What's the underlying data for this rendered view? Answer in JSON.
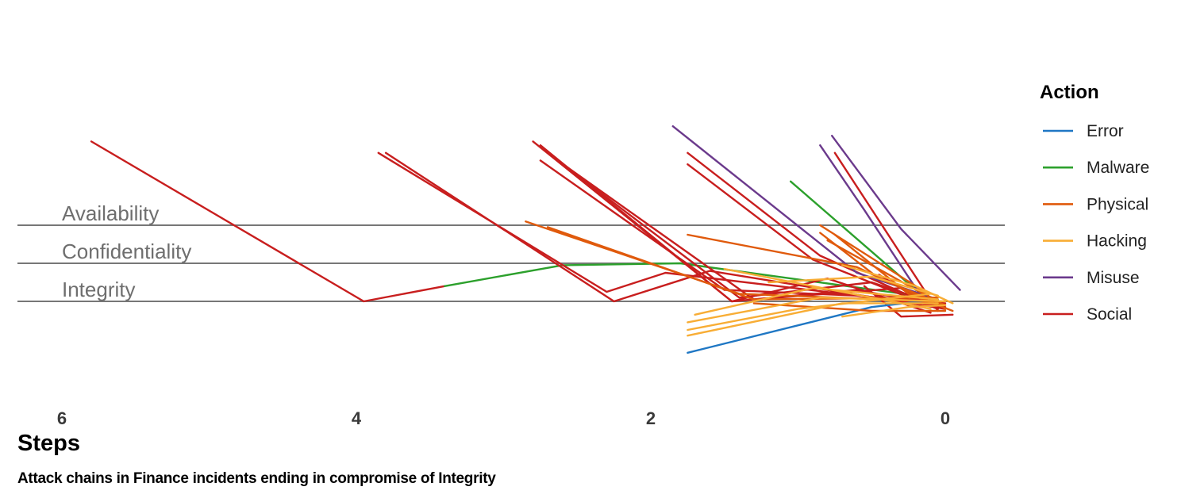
{
  "chart_data": {
    "type": "line",
    "xlabel": "Steps",
    "subtitle": "Attack chains in Finance incidents ending in compromise of Integrity",
    "x_ticks": [
      6,
      4,
      2,
      0
    ],
    "xlim": [
      6.3,
      -0.4
    ],
    "categories": [
      "Availability",
      "Confidentiality",
      "Integrity"
    ],
    "legend": {
      "title": "Action",
      "position": "right",
      "entries": [
        {
          "name": "Error",
          "color": "#1f77c4"
        },
        {
          "name": "Malware",
          "color": "#2ca02c"
        },
        {
          "name": "Physical",
          "color": "#e05a0c"
        },
        {
          "name": "Hacking",
          "color": "#f8ad35"
        },
        {
          "name": "Misuse",
          "color": "#6b3a8c"
        },
        {
          "name": "Social",
          "color": "#c81e1e"
        }
      ]
    },
    "chains": [
      {
        "segments": [
          {
            "action": "Social",
            "points": [
              [
                5.8,
                4.2
              ],
              [
                3.95,
                0.0
              ],
              [
                3.4,
                0.4
              ]
            ]
          },
          {
            "action": "Malware",
            "points": [
              [
                3.4,
                0.4
              ],
              [
                2.6,
                0.95
              ],
              [
                1.8,
                1.0
              ],
              [
                0.1,
                0.1
              ]
            ]
          }
        ]
      },
      {
        "segments": [
          {
            "action": "Social",
            "points": [
              [
                3.85,
                3.9
              ],
              [
                2.3,
                0.25
              ],
              [
                1.9,
                0.75
              ],
              [
                0.05,
                -0.1
              ]
            ]
          }
        ]
      },
      {
        "segments": [
          {
            "action": "Social",
            "points": [
              [
                3.8,
                3.9
              ],
              [
                2.25,
                0.0
              ],
              [
                1.6,
                0.8
              ],
              [
                0.0,
                -0.2
              ]
            ]
          }
        ]
      },
      {
        "segments": [
          {
            "action": "Social",
            "points": [
              [
                2.8,
                4.2
              ],
              [
                1.45,
                0.0
              ],
              [
                0.6,
                0.3
              ],
              [
                0.05,
                -0.1
              ]
            ]
          }
        ]
      },
      {
        "segments": [
          {
            "action": "Social",
            "points": [
              [
                2.75,
                4.1
              ],
              [
                1.45,
                0.0
              ],
              [
                0.8,
                0.6
              ],
              [
                0.1,
                -0.3
              ]
            ]
          }
        ]
      },
      {
        "segments": [
          {
            "action": "Social",
            "points": [
              [
                2.7,
                3.9
              ],
              [
                1.4,
                0.1
              ],
              [
                0.5,
                0.5
              ],
              [
                0.0,
                -0.15
              ]
            ]
          }
        ]
      },
      {
        "segments": [
          {
            "action": "Social",
            "points": [
              [
                2.65,
                3.75
              ],
              [
                1.3,
                0.05
              ],
              [
                0.3,
                0.35
              ],
              [
                0.05,
                -0.2
              ]
            ]
          }
        ]
      },
      {
        "segments": [
          {
            "action": "Social",
            "points": [
              [
                2.75,
                3.7
              ],
              [
                1.5,
                0.3
              ],
              [
                0.6,
                0.15
              ],
              [
                0.0,
                -0.05
              ]
            ]
          }
        ]
      },
      {
        "segments": [
          {
            "action": "Social",
            "points": [
              [
                1.75,
                3.9
              ],
              [
                0.85,
                1.2
              ],
              [
                0.1,
                -0.1
              ]
            ]
          }
        ]
      },
      {
        "segments": [
          {
            "action": "Social",
            "points": [
              [
                1.75,
                3.6
              ],
              [
                0.9,
                1.1
              ],
              [
                0.05,
                -0.2
              ]
            ]
          }
        ]
      },
      {
        "segments": [
          {
            "action": "Social",
            "points": [
              [
                0.75,
                3.9
              ],
              [
                0.05,
                -0.25
              ]
            ]
          }
        ]
      },
      {
        "segments": [
          {
            "action": "Social",
            "points": [
              [
                0.45,
                0.7
              ],
              [
                0.2,
                0.1
              ],
              [
                0.0,
                -0.2
              ]
            ]
          }
        ]
      },
      {
        "segments": [
          {
            "action": "Social",
            "points": [
              [
                0.55,
                0.4
              ],
              [
                0.3,
                -0.4
              ],
              [
                -0.05,
                -0.35
              ]
            ]
          }
        ]
      },
      {
        "segments": [
          {
            "action": "Misuse",
            "points": [
              [
                1.85,
                4.6
              ],
              [
                0.6,
                0.75
              ],
              [
                0.05,
                0.05
              ]
            ]
          }
        ]
      },
      {
        "segments": [
          {
            "action": "Misuse",
            "points": [
              [
                0.85,
                4.1
              ],
              [
                0.55,
                2.4
              ],
              [
                0.15,
                0.05
              ]
            ]
          }
        ]
      },
      {
        "segments": [
          {
            "action": "Misuse",
            "points": [
              [
                0.77,
                4.35
              ],
              [
                0.3,
                1.9
              ],
              [
                -0.1,
                0.3
              ]
            ]
          }
        ]
      },
      {
        "segments": [
          {
            "action": "Malware",
            "points": [
              [
                1.05,
                3.15
              ],
              [
                0.2,
                0.3
              ]
            ]
          }
        ]
      },
      {
        "segments": [
          {
            "action": "Error",
            "points": [
              [
                1.75,
                -1.35
              ],
              [
                0.5,
                -0.15
              ],
              [
                0.05,
                0.05
              ]
            ]
          }
        ]
      },
      {
        "segments": [
          {
            "action": "Physical",
            "points": [
              [
                2.85,
                2.1
              ],
              [
                1.4,
                0.2
              ],
              [
                0.1,
                0.0
              ]
            ]
          }
        ]
      },
      {
        "segments": [
          {
            "action": "Physical",
            "points": [
              [
                2.7,
                1.95
              ],
              [
                1.3,
                0.05
              ],
              [
                0.05,
                0.1
              ]
            ]
          }
        ]
      },
      {
        "segments": [
          {
            "action": "Physical",
            "points": [
              [
                1.75,
                1.75
              ],
              [
                0.6,
                0.9
              ],
              [
                0.05,
                -0.1
              ]
            ]
          }
        ]
      },
      {
        "segments": [
          {
            "action": "Physical",
            "points": [
              [
                0.85,
                2.0
              ],
              [
                0.2,
                0.4
              ],
              [
                0.0,
                -0.2
              ]
            ]
          }
        ]
      },
      {
        "segments": [
          {
            "action": "Physical",
            "points": [
              [
                0.85,
                1.8
              ],
              [
                0.45,
                0.6
              ],
              [
                0.0,
                -0.1
              ]
            ]
          }
        ]
      },
      {
        "segments": [
          {
            "action": "Physical",
            "points": [
              [
                0.75,
                1.75
              ],
              [
                0.25,
                0.2
              ],
              [
                -0.05,
                -0.25
              ]
            ]
          }
        ]
      },
      {
        "segments": [
          {
            "action": "Physical",
            "points": [
              [
                0.8,
                1.6
              ],
              [
                0.15,
                0.2
              ]
            ]
          }
        ]
      },
      {
        "segments": [
          {
            "action": "Physical",
            "points": [
              [
                1.3,
                -0.05
              ],
              [
                0.5,
                -0.25
              ],
              [
                0.0,
                -0.25
              ]
            ]
          }
        ]
      },
      {
        "segments": [
          {
            "action": "Hacking",
            "points": [
              [
                1.7,
                -0.35
              ],
              [
                0.9,
                0.35
              ],
              [
                0.05,
                0.05
              ]
            ]
          }
        ]
      },
      {
        "segments": [
          {
            "action": "Hacking",
            "points": [
              [
                1.75,
                -0.55
              ],
              [
                0.85,
                0.1
              ],
              [
                0.0,
                0.0
              ]
            ]
          }
        ]
      },
      {
        "segments": [
          {
            "action": "Hacking",
            "points": [
              [
                1.75,
                -0.9
              ],
              [
                0.7,
                -0.05
              ],
              [
                0.05,
                -0.05
              ]
            ]
          }
        ]
      },
      {
        "segments": [
          {
            "action": "Hacking",
            "points": [
              [
                1.75,
                -0.75
              ],
              [
                1.0,
                -0.2
              ],
              [
                0.1,
                0.2
              ]
            ]
          }
        ]
      },
      {
        "segments": [
          {
            "action": "Hacking",
            "points": [
              [
                1.5,
                0.85
              ],
              [
                0.9,
                0.4
              ],
              [
                0.1,
                -0.2
              ]
            ]
          }
        ]
      },
      {
        "segments": [
          {
            "action": "Hacking",
            "points": [
              [
                0.7,
                0.95
              ],
              [
                0.2,
                0.4
              ],
              [
                -0.05,
                -0.05
              ]
            ]
          }
        ]
      },
      {
        "segments": [
          {
            "action": "Hacking",
            "points": [
              [
                0.7,
                -0.4
              ],
              [
                0.25,
                -0.15
              ],
              [
                0.0,
                -0.1
              ]
            ]
          }
        ]
      },
      {
        "segments": [
          {
            "action": "Hacking",
            "points": [
              [
                1.2,
                0.5
              ],
              [
                0.5,
                0.65
              ],
              [
                0.05,
                0.15
              ]
            ]
          }
        ]
      }
    ]
  }
}
